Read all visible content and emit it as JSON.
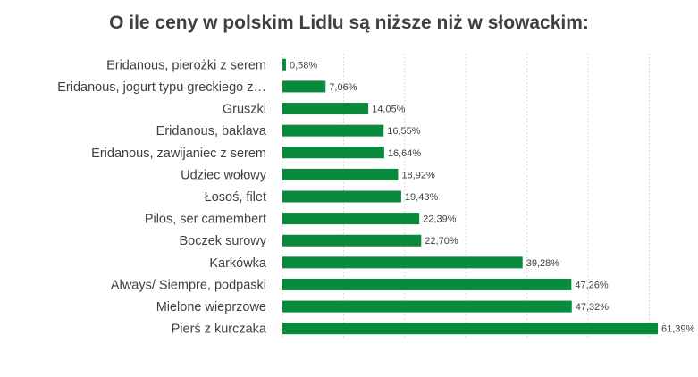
{
  "chart_data": {
    "type": "bar",
    "orientation": "horizontal",
    "title": "O ile ceny w polskim Lidlu są niższe niż w słowackim:",
    "categories": [
      "Eridanous, pierożki z serem",
      "Eridanous, jogurt typu greckiego z…",
      "Gruszki",
      "Eridanous, baklava",
      "Eridanous, zawijaniec z serem",
      "Udziec wołowy",
      "Łosoś, filet",
      "Pilos, ser camembert",
      "Boczek surowy",
      "Karkówka",
      "Always/ Siempre, podpaski",
      "Mielone wieprzowe",
      "Pierś z kurczaka"
    ],
    "values": [
      0.58,
      7.06,
      14.05,
      16.55,
      16.64,
      18.92,
      19.43,
      22.39,
      22.7,
      39.28,
      47.26,
      47.32,
      61.39
    ],
    "value_labels": [
      "0,58%",
      "7,06%",
      "14,05%",
      "16,55%",
      "16,64%",
      "18,92%",
      "19,43%",
      "22,39%",
      "22,70%",
      "39,28%",
      "47,26%",
      "47,32%",
      "61,39%"
    ],
    "xlim": [
      0,
      61.39
    ],
    "bar_color": "#0a8a3c",
    "grid": true,
    "legend": false
  }
}
